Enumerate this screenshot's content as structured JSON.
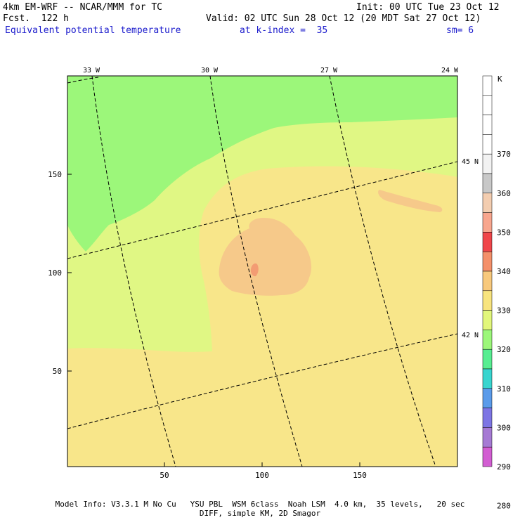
{
  "header": {
    "model": "4km EM-WRF -- NCAR/MMM for TC",
    "forecast": "Fcst.  122 h",
    "init": "Init: 00 UTC Tue 23 Oct 12",
    "valid": "Valid: 02 UTC Sun 28 Oct 12 (20 MDT Sat 27 Oct 12)",
    "field": "Equivalent potential temperature",
    "level": "at k-index =  35",
    "smoothing": "sm= 6"
  },
  "map": {
    "x_ticks": [
      "50",
      "100",
      "150"
    ],
    "y_ticks": [
      "150",
      "100",
      "50"
    ],
    "lon_labels": [
      "33 W",
      "30 W",
      "27 W",
      "24 W"
    ],
    "lat_labels": [
      "45 N",
      "42 N"
    ],
    "colors": {
      "green": "#9cf77a",
      "lightyellow": "#e0f784",
      "yellow": "#f8e68a",
      "peach": "#f6c98a",
      "orange": "#f39c73"
    }
  },
  "colorbar": {
    "unit": "K",
    "labels": [
      "370",
      "360",
      "350",
      "340",
      "330",
      "320",
      "310",
      "300",
      "290",
      "280"
    ],
    "colors": [
      "#ffffff",
      "#ffffff",
      "#ffffff",
      "#ffffff",
      "#f2f2f2",
      "#c8c8c8",
      "#f3cdb0",
      "#f8a68e",
      "#f0464a",
      "#f4906a",
      "#f8c97c",
      "#f8e47e",
      "#e2f77b",
      "#9cf77a",
      "#57ee91",
      "#38d5cf",
      "#5a9bea",
      "#7d75e4",
      "#a67ad4",
      "#d25ed2"
    ]
  },
  "footer": {
    "line1": "Model Info: V3.3.1 M No Cu   YSU PBL  WSM 6class  Noah LSM  4.0 km,  35 levels,   20 sec",
    "line2": "DIFF, simple KM, 2D Smagor"
  }
}
